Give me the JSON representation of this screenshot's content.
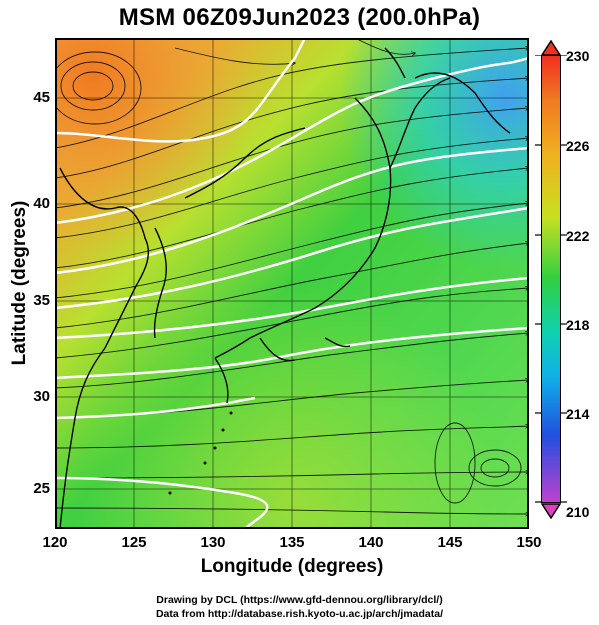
{
  "title": "MSM 06Z09Jun2023 (200.0hPa)",
  "x_axis": {
    "label": "Longitude (degrees)",
    "ticks": [
      "120",
      "125",
      "130",
      "135",
      "140",
      "145",
      "150"
    ]
  },
  "y_axis": {
    "label": "Latitude  (degrees)",
    "ticks": [
      "25",
      "30",
      "35",
      "40",
      "45"
    ]
  },
  "colorbar": {
    "ticks": [
      "230",
      "226",
      "222",
      "218",
      "214",
      "210"
    ],
    "range": [
      210,
      230
    ],
    "colors": [
      "#e040c0",
      "#3050e0",
      "#10c8e0",
      "#20d040",
      "#c8e020",
      "#f09020",
      "#f03020"
    ]
  },
  "map": {
    "lon_range": [
      120,
      150
    ],
    "lat_range": [
      22.5,
      48
    ],
    "features": [
      "coastlines",
      "wind-streamlines",
      "isotach-contours"
    ]
  },
  "credits": [
    "Drawing by DCL (https://www.gfd-dennou.org/library/dcl/)",
    "Data from http://database.rish.kyoto-u.ac.jp/arch/jmadata/"
  ]
}
